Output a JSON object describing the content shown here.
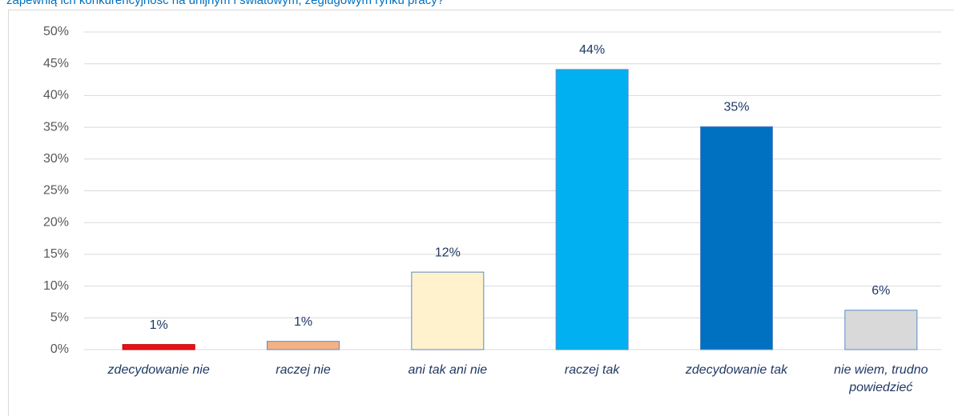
{
  "chart_data": {
    "type": "bar",
    "title": "zapewnią ich konkurencyjność na unijnym i światowym, żeglugowym rynku pracy?",
    "categories": [
      "zdecydowanie nie",
      "raczej nie",
      "ani tak ani nie",
      "raczej tak",
      "zdecydowanie tak",
      "nie wiem, trudno powiedzieć"
    ],
    "values": [
      0.8,
      1.3,
      12.2,
      44.1,
      35.1,
      6.2
    ],
    "value_labels": [
      "1%",
      "1%",
      "12%",
      "44%",
      "35%",
      "6%"
    ],
    "colors": [
      "#e8101a",
      "#f4b183",
      "#fff2cc",
      "#00b0f0",
      "#0070c0",
      "#d9d9d9"
    ],
    "ylim": [
      0,
      50
    ],
    "yticks": [
      {
        "value": 0,
        "label": "0%"
      },
      {
        "value": 5,
        "label": "5%"
      },
      {
        "value": 10,
        "label": "10%"
      },
      {
        "value": 15,
        "label": "15%"
      },
      {
        "value": 20,
        "label": "20%"
      },
      {
        "value": 25,
        "label": "25%"
      },
      {
        "value": 30,
        "label": "30%"
      },
      {
        "value": 35,
        "label": "35%"
      },
      {
        "value": 40,
        "label": "40%"
      },
      {
        "value": 45,
        "label": "45%"
      },
      {
        "value": 50,
        "label": "50%"
      }
    ],
    "grid": true
  }
}
